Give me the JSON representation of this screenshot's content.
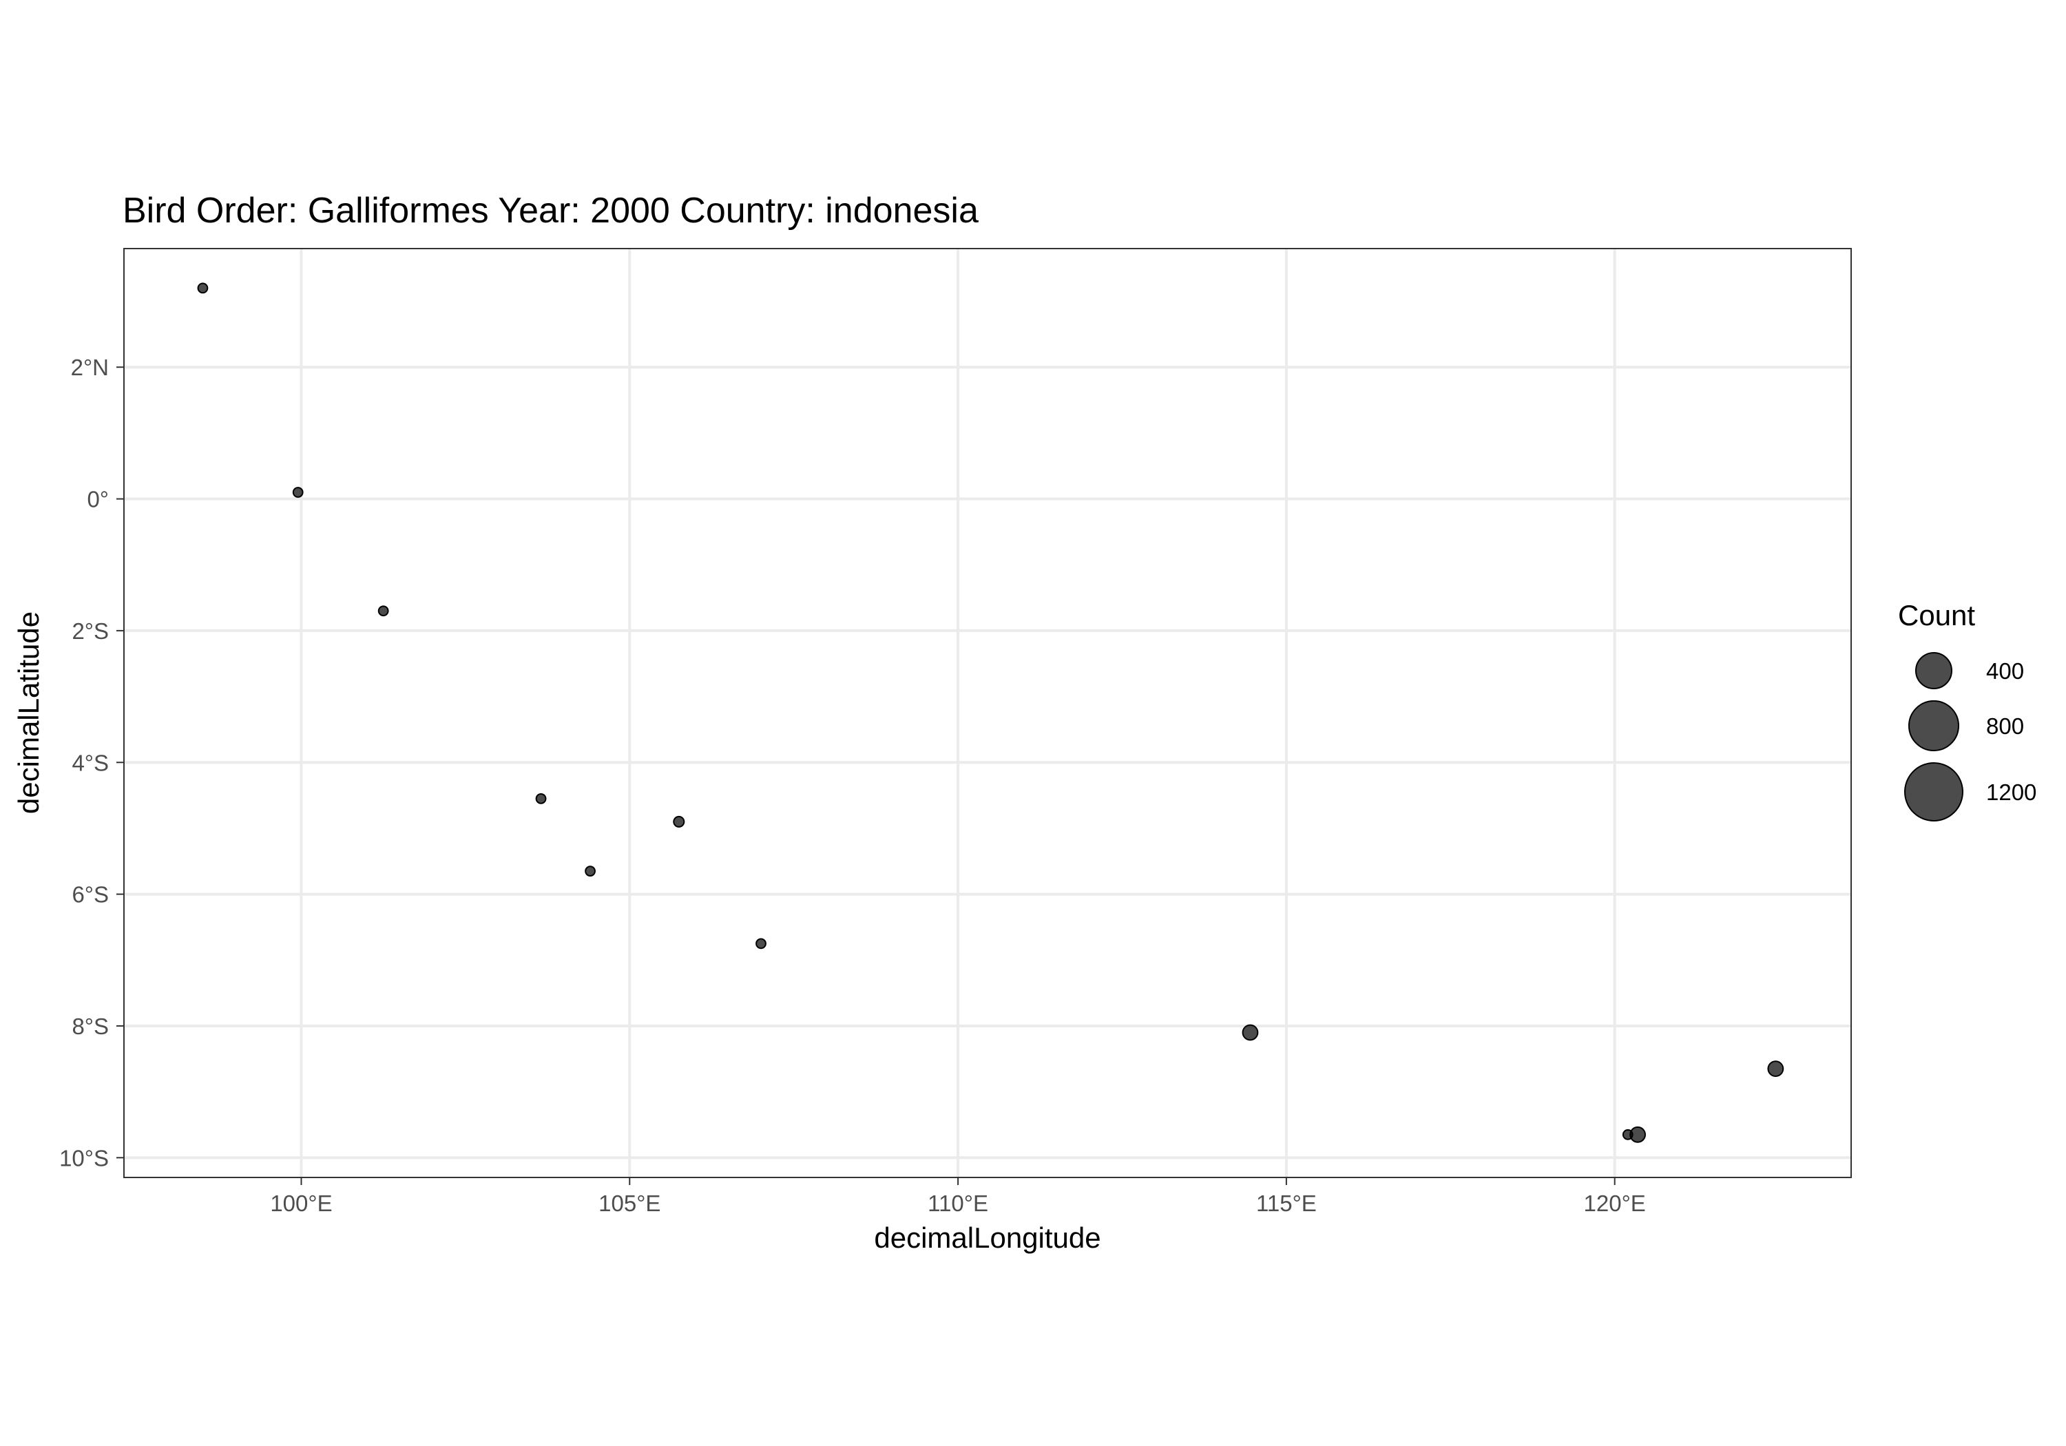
{
  "chart_data": {
    "type": "scatter",
    "title": "Bird Order: Galliformes Year: 2000 Country: indonesia",
    "xlabel": "decimalLongitude",
    "ylabel": "decimalLatitude",
    "xlim": [
      97.3,
      123.6
    ],
    "ylim": [
      -10.3,
      3.8
    ],
    "x_ticks": [
      {
        "value": 100,
        "label": "100°E"
      },
      {
        "value": 105,
        "label": "105°E"
      },
      {
        "value": 110,
        "label": "110°E"
      },
      {
        "value": 115,
        "label": "115°E"
      },
      {
        "value": 120,
        "label": "120°E"
      }
    ],
    "y_ticks": [
      {
        "value": 2,
        "label": "2°N"
      },
      {
        "value": 0,
        "label": "0°"
      },
      {
        "value": -2,
        "label": "2°S"
      },
      {
        "value": -4,
        "label": "4°S"
      },
      {
        "value": -6,
        "label": "6°S"
      },
      {
        "value": -8,
        "label": "8°S"
      },
      {
        "value": -10,
        "label": "10°S"
      }
    ],
    "grid": true,
    "point_color": "#000000",
    "point_opacity": 0.7,
    "points": [
      {
        "x": 98.5,
        "y": 3.2,
        "count": 10
      },
      {
        "x": 99.95,
        "y": 0.1,
        "count": 10
      },
      {
        "x": 101.25,
        "y": -1.7,
        "count": 10
      },
      {
        "x": 103.65,
        "y": -4.55,
        "count": 10
      },
      {
        "x": 104.4,
        "y": -5.65,
        "count": 10
      },
      {
        "x": 105.75,
        "y": -4.9,
        "count": 12
      },
      {
        "x": 107.0,
        "y": -6.75,
        "count": 10
      },
      {
        "x": 114.45,
        "y": -8.1,
        "count": 25
      },
      {
        "x": 120.2,
        "y": -9.65,
        "count": 10
      },
      {
        "x": 120.35,
        "y": -9.65,
        "count": 25
      },
      {
        "x": 122.45,
        "y": -8.65,
        "count": 25
      }
    ],
    "legend": {
      "title": "Count",
      "position": "right",
      "entries": [
        {
          "label": "400",
          "value": 400
        },
        {
          "label": "800",
          "value": 800
        },
        {
          "label": "1200",
          "value": 1200
        }
      ]
    }
  }
}
